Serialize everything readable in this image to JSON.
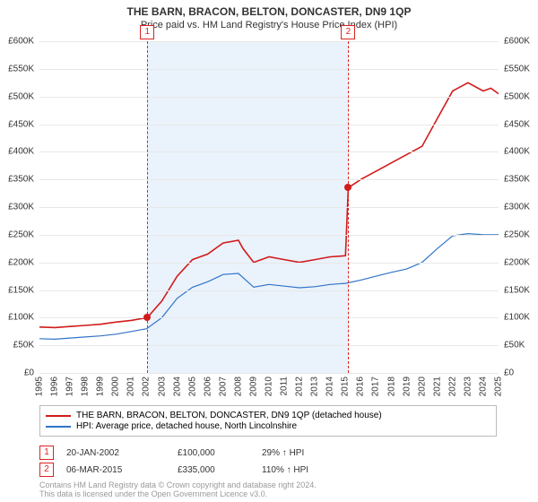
{
  "title": "THE BARN, BRACON, BELTON, DONCASTER, DN9 1QP",
  "subtitle": "Price paid vs. HM Land Registry's House Price Index (HPI)",
  "chart": {
    "type": "line",
    "background_color": "#ffffff",
    "grid_color": "#e8e8e8",
    "shaded_region_color": "#eaf2fb",
    "shaded_region_start_year": 2002.05,
    "shaded_region_end_year": 2015.18,
    "xlim": [
      1995,
      2025
    ],
    "ylim": [
      0,
      600000
    ],
    "ytick_step": 50000,
    "ytick_labels": [
      "£0",
      "£50K",
      "£100K",
      "£150K",
      "£200K",
      "£250K",
      "£300K",
      "£350K",
      "£400K",
      "£450K",
      "£500K",
      "£550K",
      "£600K"
    ],
    "xtick_years": [
      1995,
      1996,
      1997,
      1998,
      1999,
      2000,
      2001,
      2002,
      2003,
      2004,
      2005,
      2006,
      2007,
      2008,
      2009,
      2010,
      2011,
      2012,
      2013,
      2014,
      2015,
      2016,
      2017,
      2018,
      2019,
      2020,
      2021,
      2022,
      2023,
      2024,
      2025
    ],
    "series": [
      {
        "name": "property",
        "label": "THE BARN, BRACON, BELTON, DONCASTER, DN9 1QP (detached house)",
        "color": "#d11b1b",
        "line_width": 1.6,
        "points": [
          [
            1995,
            83000
          ],
          [
            1996,
            82000
          ],
          [
            1997,
            84000
          ],
          [
            1998,
            86000
          ],
          [
            1999,
            88000
          ],
          [
            2000,
            92000
          ],
          [
            2001,
            95000
          ],
          [
            2002.05,
            100000
          ],
          [
            2003,
            130000
          ],
          [
            2004,
            175000
          ],
          [
            2005,
            205000
          ],
          [
            2006,
            215000
          ],
          [
            2007,
            235000
          ],
          [
            2008,
            240000
          ],
          [
            2008.3,
            225000
          ],
          [
            2009,
            200000
          ],
          [
            2010,
            210000
          ],
          [
            2011,
            205000
          ],
          [
            2012,
            200000
          ],
          [
            2013,
            205000
          ],
          [
            2014,
            210000
          ],
          [
            2015,
            212000
          ],
          [
            2015.18,
            335000
          ],
          [
            2016,
            350000
          ],
          [
            2017,
            365000
          ],
          [
            2018,
            380000
          ],
          [
            2019,
            395000
          ],
          [
            2020,
            410000
          ],
          [
            2021,
            460000
          ],
          [
            2022,
            510000
          ],
          [
            2023,
            525000
          ],
          [
            2024,
            510000
          ],
          [
            2024.5,
            515000
          ],
          [
            2025,
            505000
          ]
        ]
      },
      {
        "name": "hpi",
        "label": "HPI: Average price, detached house, North Lincolnshire",
        "color": "#3274c9",
        "line_width": 1.2,
        "points": [
          [
            1995,
            62000
          ],
          [
            1996,
            61000
          ],
          [
            1997,
            63000
          ],
          [
            1998,
            65000
          ],
          [
            1999,
            67000
          ],
          [
            2000,
            70000
          ],
          [
            2001,
            75000
          ],
          [
            2002,
            80000
          ],
          [
            2003,
            100000
          ],
          [
            2004,
            135000
          ],
          [
            2005,
            155000
          ],
          [
            2006,
            165000
          ],
          [
            2007,
            178000
          ],
          [
            2008,
            180000
          ],
          [
            2009,
            155000
          ],
          [
            2010,
            160000
          ],
          [
            2011,
            157000
          ],
          [
            2012,
            154000
          ],
          [
            2013,
            156000
          ],
          [
            2014,
            160000
          ],
          [
            2015,
            162000
          ],
          [
            2016,
            168000
          ],
          [
            2017,
            175000
          ],
          [
            2018,
            182000
          ],
          [
            2019,
            188000
          ],
          [
            2020,
            200000
          ],
          [
            2021,
            225000
          ],
          [
            2022,
            248000
          ],
          [
            2023,
            252000
          ],
          [
            2024,
            250000
          ],
          [
            2025,
            250000
          ]
        ]
      }
    ],
    "markers": [
      {
        "id": "1",
        "x_year": 2002.05,
        "top_y": -18,
        "dot_value": 100000,
        "dot_color": "#d11b1b"
      },
      {
        "id": "2",
        "x_year": 2015.18,
        "top_y": -18,
        "dot_value": 335000,
        "dot_color": "#d11b1b"
      }
    ],
    "marker_line_color": "#d22"
  },
  "legend": {
    "series1_label": "THE BARN, BRACON, BELTON, DONCASTER, DN9 1QP (detached house)",
    "series1_color": "#d11b1b",
    "series2_label": "HPI: Average price, detached house, North Lincolnshire",
    "series2_color": "#3274c9"
  },
  "events": [
    {
      "id": "1",
      "date": "20-JAN-2002",
      "price": "£100,000",
      "pct": "29% ↑ HPI"
    },
    {
      "id": "2",
      "date": "06-MAR-2015",
      "price": "£335,000",
      "pct": "110% ↑ HPI"
    }
  ],
  "footnote_line1": "Contains HM Land Registry data © Crown copyright and database right 2024.",
  "footnote_line2": "This data is licensed under the Open Government Licence v3.0."
}
